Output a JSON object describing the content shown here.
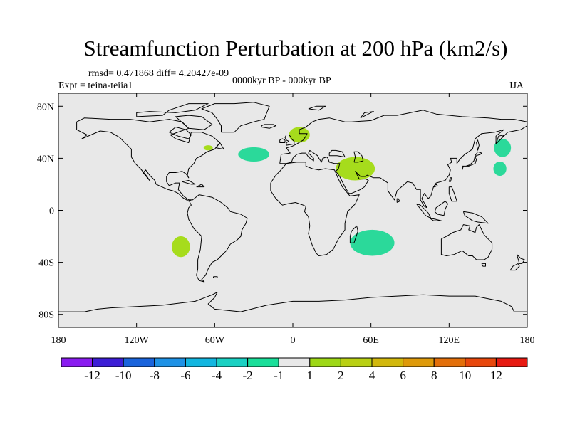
{
  "title": "Streamfunction Perturbation at 200 hPa (km2/s)",
  "stats": {
    "rmsd": "rmsd= 0.471868 diff= 4.20427e-09",
    "expt": "Expt = teina-teiia1",
    "period": "0000kyr BP - 000kyr BP",
    "season": "JJA"
  },
  "map": {
    "background_color": "#e8e8e8",
    "coastline_color": "#000000",
    "lon_ticks": [
      {
        "value": -180,
        "label": "180"
      },
      {
        "value": -120,
        "label": "120W"
      },
      {
        "value": -60,
        "label": "60W"
      },
      {
        "value": 0,
        "label": "0"
      },
      {
        "value": 60,
        "label": "60E"
      },
      {
        "value": 120,
        "label": "120E"
      },
      {
        "value": 180,
        "label": "180"
      }
    ],
    "lat_ticks": [
      {
        "value": 80,
        "label": "80N"
      },
      {
        "value": 40,
        "label": "40N"
      },
      {
        "value": 0,
        "label": "0"
      },
      {
        "value": -40,
        "label": "40S"
      },
      {
        "value": -80,
        "label": "80S"
      }
    ],
    "anomalies": [
      {
        "name": "north-atlantic-negative",
        "lon": -30,
        "lat": 43,
        "dlon": 12,
        "dlat": 5.5,
        "level": "-2 to -1",
        "color": "#2bd99a"
      },
      {
        "name": "newfoundland-positive",
        "lon": -65,
        "lat": 48,
        "dlon": 3.5,
        "dlat": 2,
        "level": "1 to 2",
        "color": "#a6dc1c"
      },
      {
        "name": "scandinavia-positive",
        "lon": 5,
        "lat": 58,
        "dlon": 8,
        "dlat": 6,
        "level": "1 to 2",
        "color": "#a6dc1c"
      },
      {
        "name": "middle-east-positive",
        "lon": 48,
        "lat": 32,
        "dlon": 15,
        "dlat": 9,
        "level": "1 to 2",
        "color": "#a6dc1c"
      },
      {
        "name": "south-indian-ocean-negative",
        "lon": 61,
        "lat": -25,
        "dlon": 17,
        "dlat": 10,
        "level": "-2 to -1",
        "color": "#2bd99a"
      },
      {
        "name": "north-pacific-negative-north",
        "lon": 161,
        "lat": 48,
        "dlon": 6.5,
        "dlat": 7,
        "level": "-2 to -1",
        "color": "#2bd99a"
      },
      {
        "name": "north-pacific-negative-south",
        "lon": 159,
        "lat": 32,
        "dlon": 5,
        "dlat": 5.5,
        "level": "-2 to -1",
        "color": "#2bd99a"
      },
      {
        "name": "south-pacific-positive",
        "lon": -86,
        "lat": -28,
        "dlon": 7,
        "dlat": 8,
        "level": "1 to 2",
        "color": "#a6dc1c"
      }
    ]
  },
  "colorbar": {
    "colors": [
      "#8a1cf0",
      "#3d1ed6",
      "#1a64dc",
      "#1e92e6",
      "#12b6e0",
      "#1ad1c3",
      "#1adf9a",
      "#e8e8e8",
      "#9ed816",
      "#b9d013",
      "#d2b80c",
      "#de9a0a",
      "#e36f0a",
      "#e8470c",
      "#e71a12"
    ],
    "labels": [
      "-12",
      "-10",
      "-8",
      "-6",
      "-4",
      "-2",
      "-1",
      "1",
      "2",
      "4",
      "6",
      "8",
      "10",
      "12"
    ]
  }
}
